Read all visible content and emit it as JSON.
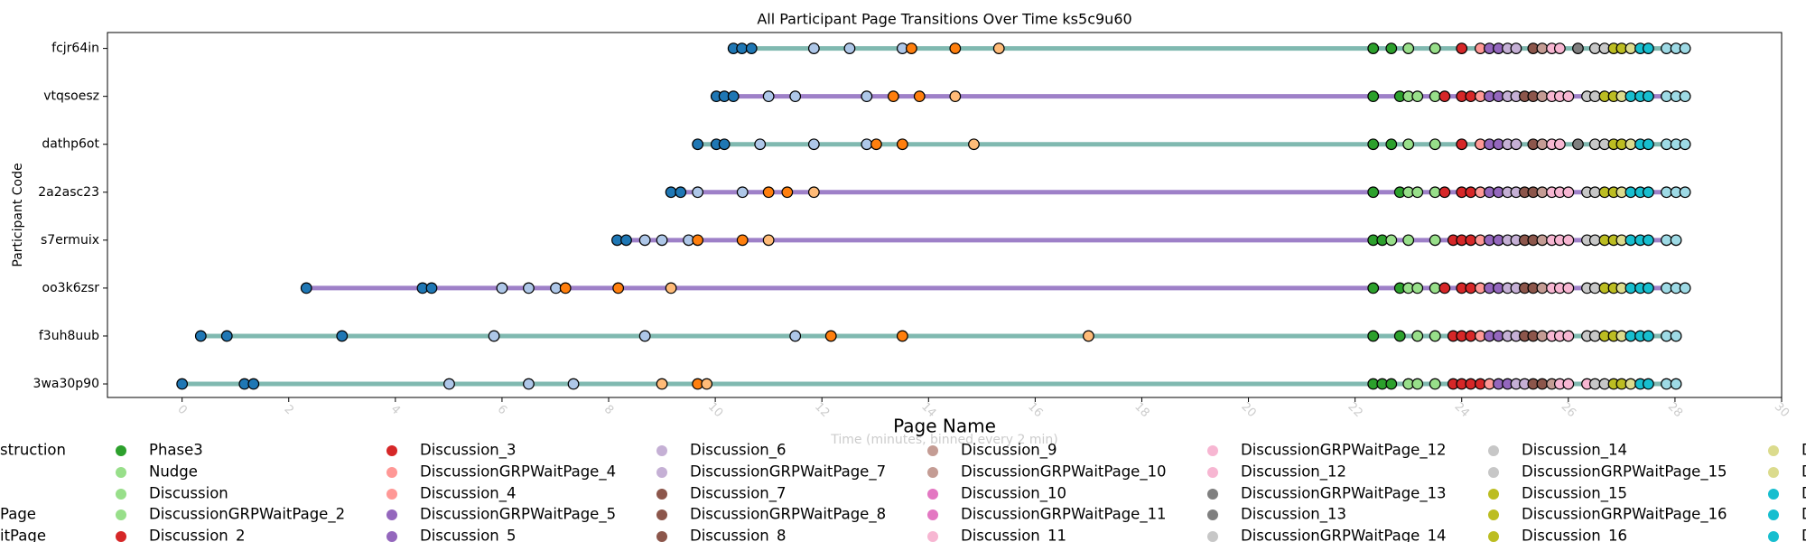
{
  "chart_data": {
    "type": "timeline",
    "title": "All Participant Page Transitions Over Time ks5c9u60",
    "x_label": "Time (minutes, binned every 2 min)",
    "y_label": "Participant Code",
    "xlim": [
      -1.4,
      30
    ],
    "xticks": [
      0,
      2,
      4,
      6,
      8,
      10,
      12,
      14,
      16,
      18,
      20,
      22,
      24,
      26,
      28,
      30
    ],
    "series": [
      {
        "name": "fcjr64in",
        "color": "#80b9b0",
        "x": [
          10.34,
          10.5,
          10.68,
          11.85,
          12.52,
          13.51,
          13.68,
          14.5,
          15.32,
          22.34,
          22.68,
          23.0,
          23.5,
          24.0,
          24.35,
          24.52,
          24.69,
          24.86,
          25.02,
          25.34,
          25.51,
          25.69,
          25.84,
          26.18,
          26.5,
          26.68,
          26.85,
          27.0,
          27.17,
          27.35,
          27.5,
          27.84,
          28.02,
          28.19
        ],
        "point_colors": [
          "#1f77b4",
          "#1f77b4",
          "#1f77b4",
          "#aec7e8",
          "#aec7e8",
          "#aec7e8",
          "#ff7f0e",
          "#ff7f0e",
          "#ffbb78",
          "#2ca02c",
          "#2ca02c",
          "#98df8a",
          "#98df8a",
          "#d62728",
          "#ff9896",
          "#9467bd",
          "#9467bd",
          "#c5b0d5",
          "#c5b0d5",
          "#8c564b",
          "#c49c94",
          "#f7b6d2",
          "#f7b6d2",
          "#7f7f7f",
          "#c7c7c7",
          "#c7c7c7",
          "#bcbd22",
          "#bcbd22",
          "#dbdb8d",
          "#17becf",
          "#17becf",
          "#9edae5",
          "#9edae5",
          "#9edae5"
        ]
      },
      {
        "name": "vtqsoesz",
        "color": "#9e80c8",
        "x": [
          10.02,
          10.17,
          10.34,
          11.0,
          11.5,
          12.84,
          13.34,
          13.83,
          14.5,
          22.34,
          22.84,
          23.0,
          23.17,
          23.5,
          23.68,
          24.0,
          24.17,
          24.35,
          24.52,
          24.69,
          24.86,
          25.02,
          25.18,
          25.34,
          25.51,
          25.69,
          25.84,
          26.0,
          26.35,
          26.5,
          26.68,
          26.85,
          27.0,
          27.17,
          27.35,
          27.5,
          27.84,
          28.02,
          28.19
        ],
        "point_colors": [
          "#1f77b4",
          "#1f77b4",
          "#1f77b4",
          "#aec7e8",
          "#aec7e8",
          "#aec7e8",
          "#ff7f0e",
          "#ff7f0e",
          "#ffbb78",
          "#2ca02c",
          "#2ca02c",
          "#98df8a",
          "#98df8a",
          "#98df8a",
          "#d62728",
          "#d62728",
          "#d62728",
          "#ff9896",
          "#9467bd",
          "#9467bd",
          "#c5b0d5",
          "#c5b0d5",
          "#8c564b",
          "#8c564b",
          "#c49c94",
          "#f7b6d2",
          "#f7b6d2",
          "#f7b6d2",
          "#c7c7c7",
          "#c7c7c7",
          "#bcbd22",
          "#bcbd22",
          "#dbdb8d",
          "#17becf",
          "#17becf",
          "#17becf",
          "#9edae5",
          "#9edae5",
          "#9edae5"
        ]
      },
      {
        "name": "dathp6ot",
        "color": "#80b9b0",
        "x": [
          9.67,
          10.02,
          10.17,
          10.84,
          11.85,
          12.84,
          13.02,
          13.51,
          14.85,
          22.34,
          22.68,
          23.0,
          23.5,
          24.0,
          24.35,
          24.52,
          24.69,
          24.86,
          25.02,
          25.34,
          25.51,
          25.69,
          25.84,
          26.18,
          26.5,
          26.68,
          26.85,
          27.0,
          27.17,
          27.35,
          27.5,
          27.84,
          28.02,
          28.19
        ],
        "point_colors": [
          "#1f77b4",
          "#1f77b4",
          "#1f77b4",
          "#aec7e8",
          "#aec7e8",
          "#aec7e8",
          "#ff7f0e",
          "#ff7f0e",
          "#ffbb78",
          "#2ca02c",
          "#2ca02c",
          "#98df8a",
          "#98df8a",
          "#d62728",
          "#ff9896",
          "#9467bd",
          "#9467bd",
          "#c5b0d5",
          "#c5b0d5",
          "#8c564b",
          "#c49c94",
          "#f7b6d2",
          "#f7b6d2",
          "#7f7f7f",
          "#c7c7c7",
          "#c7c7c7",
          "#bcbd22",
          "#bcbd22",
          "#dbdb8d",
          "#17becf",
          "#17becf",
          "#9edae5",
          "#9edae5",
          "#9edae5"
        ]
      },
      {
        "name": "2a2asc23",
        "color": "#9e80c8",
        "x": [
          9.17,
          9.35,
          9.67,
          10.51,
          11.0,
          11.35,
          11.85,
          22.34,
          22.84,
          23.0,
          23.17,
          23.5,
          23.68,
          24.0,
          24.17,
          24.35,
          24.52,
          24.69,
          24.86,
          25.02,
          25.18,
          25.34,
          25.51,
          25.69,
          25.84,
          26.0,
          26.35,
          26.5,
          26.68,
          26.85,
          27.0,
          27.17,
          27.35,
          27.5,
          27.84,
          28.02,
          28.19
        ],
        "point_colors": [
          "#1f77b4",
          "#1f77b4",
          "#aec7e8",
          "#aec7e8",
          "#ff7f0e",
          "#ff7f0e",
          "#ffbb78",
          "#2ca02c",
          "#2ca02c",
          "#98df8a",
          "#98df8a",
          "#98df8a",
          "#d62728",
          "#d62728",
          "#d62728",
          "#ff9896",
          "#9467bd",
          "#9467bd",
          "#c5b0d5",
          "#c5b0d5",
          "#8c564b",
          "#8c564b",
          "#c49c94",
          "#f7b6d2",
          "#f7b6d2",
          "#f7b6d2",
          "#c7c7c7",
          "#c7c7c7",
          "#bcbd22",
          "#bcbd22",
          "#dbdb8d",
          "#17becf",
          "#17becf",
          "#17becf",
          "#9edae5",
          "#9edae5",
          "#9edae5"
        ]
      },
      {
        "name": "s7ermuix",
        "color": "#9e80c8",
        "x": [
          8.16,
          8.33,
          8.68,
          9.0,
          9.5,
          9.67,
          10.51,
          11.0,
          22.34,
          22.51,
          22.68,
          23.0,
          23.5,
          23.84,
          24.0,
          24.17,
          24.35,
          24.52,
          24.69,
          24.86,
          25.02,
          25.18,
          25.34,
          25.51,
          25.69,
          25.84,
          26.0,
          26.35,
          26.5,
          26.68,
          26.85,
          27.0,
          27.17,
          27.35,
          27.5,
          27.84,
          28.02
        ],
        "point_colors": [
          "#1f77b4",
          "#1f77b4",
          "#aec7e8",
          "#aec7e8",
          "#aec7e8",
          "#ff7f0e",
          "#ff7f0e",
          "#ffbb78",
          "#2ca02c",
          "#2ca02c",
          "#98df8a",
          "#98df8a",
          "#98df8a",
          "#d62728",
          "#d62728",
          "#d62728",
          "#ff9896",
          "#9467bd",
          "#9467bd",
          "#c5b0d5",
          "#c5b0d5",
          "#8c564b",
          "#8c564b",
          "#c49c94",
          "#f7b6d2",
          "#f7b6d2",
          "#f7b6d2",
          "#c7c7c7",
          "#c7c7c7",
          "#bcbd22",
          "#bcbd22",
          "#dbdb8d",
          "#17becf",
          "#17becf",
          "#17becf",
          "#9edae5",
          "#9edae5"
        ]
      },
      {
        "name": "oo3k6zsr",
        "color": "#9e80c8",
        "x": [
          2.33,
          4.51,
          4.68,
          6.0,
          6.5,
          7.01,
          7.19,
          8.18,
          9.17,
          22.34,
          22.84,
          23.0,
          23.17,
          23.5,
          23.68,
          24.0,
          24.17,
          24.35,
          24.52,
          24.69,
          24.86,
          25.02,
          25.18,
          25.34,
          25.51,
          25.69,
          25.84,
          26.0,
          26.35,
          26.5,
          26.68,
          26.85,
          27.0,
          27.17,
          27.35,
          27.5,
          27.84,
          28.02,
          28.19
        ],
        "point_colors": [
          "#1f77b4",
          "#1f77b4",
          "#1f77b4",
          "#aec7e8",
          "#aec7e8",
          "#aec7e8",
          "#ff7f0e",
          "#ff7f0e",
          "#ffbb78",
          "#2ca02c",
          "#2ca02c",
          "#98df8a",
          "#98df8a",
          "#98df8a",
          "#d62728",
          "#d62728",
          "#d62728",
          "#ff9896",
          "#9467bd",
          "#9467bd",
          "#c5b0d5",
          "#c5b0d5",
          "#8c564b",
          "#8c564b",
          "#c49c94",
          "#f7b6d2",
          "#f7b6d2",
          "#f7b6d2",
          "#c7c7c7",
          "#c7c7c7",
          "#bcbd22",
          "#bcbd22",
          "#dbdb8d",
          "#17becf",
          "#17becf",
          "#17becf",
          "#9edae5",
          "#9edae5",
          "#9edae5"
        ]
      },
      {
        "name": "f3uh8uub",
        "color": "#80b9b0",
        "x": [
          0.35,
          0.84,
          3.0,
          5.85,
          8.68,
          11.5,
          12.17,
          13.51,
          17.0,
          22.34,
          22.84,
          23.17,
          23.5,
          23.84,
          24.0,
          24.17,
          24.35,
          24.52,
          24.69,
          24.86,
          25.02,
          25.18,
          25.34,
          25.51,
          25.69,
          25.84,
          26.0,
          26.35,
          26.5,
          26.68,
          26.85,
          27.0,
          27.17,
          27.35,
          27.5,
          27.84,
          28.02
        ],
        "point_colors": [
          "#1f77b4",
          "#1f77b4",
          "#1f77b4",
          "#aec7e8",
          "#aec7e8",
          "#aec7e8",
          "#ff7f0e",
          "#ff7f0e",
          "#ffbb78",
          "#2ca02c",
          "#2ca02c",
          "#98df8a",
          "#98df8a",
          "#d62728",
          "#d62728",
          "#d62728",
          "#ff9896",
          "#9467bd",
          "#9467bd",
          "#c5b0d5",
          "#c5b0d5",
          "#8c564b",
          "#8c564b",
          "#c49c94",
          "#f7b6d2",
          "#f7b6d2",
          "#f7b6d2",
          "#c7c7c7",
          "#c7c7c7",
          "#bcbd22",
          "#bcbd22",
          "#dbdb8d",
          "#17becf",
          "#17becf",
          "#17becf",
          "#9edae5",
          "#9edae5"
        ]
      },
      {
        "name": "3wa30p90",
        "color": "#80b9b0",
        "x": [
          0,
          1.17,
          1.34,
          5.01,
          6.5,
          7.34,
          9.0,
          9.67,
          9.84,
          22.34,
          22.51,
          22.68,
          23.0,
          23.17,
          23.5,
          23.84,
          24.0,
          24.17,
          24.35,
          24.52,
          24.69,
          24.86,
          25.02,
          25.18,
          25.34,
          25.51,
          25.69,
          25.84,
          26.0,
          26.35,
          26.5,
          26.68,
          26.85,
          27.0,
          27.17,
          27.35,
          27.5,
          27.84,
          28.02
        ],
        "point_colors": [
          "#1f77b4",
          "#1f77b4",
          "#1f77b4",
          "#aec7e8",
          "#aec7e8",
          "#aec7e8",
          "#ffbb78",
          "#ff7f0e",
          "#ffbb78",
          "#2ca02c",
          "#2ca02c",
          "#2ca02c",
          "#98df8a",
          "#98df8a",
          "#98df8a",
          "#d62728",
          "#d62728",
          "#d62728",
          "#d62728",
          "#ff9896",
          "#9467bd",
          "#9467bd",
          "#c5b0d5",
          "#c5b0d5",
          "#8c564b",
          "#8c564b",
          "#c49c94",
          "#f7b6d2",
          "#f7b6d2",
          "#f7b6d2",
          "#c7c7c7",
          "#c7c7c7",
          "#bcbd22",
          "#bcbd22",
          "#dbdb8d",
          "#17becf",
          "#17becf",
          "#9edae5",
          "#9edae5"
        ]
      }
    ],
    "legend": {
      "title": "Page Name",
      "clipped_labels": [
        "struction",
        "Page",
        "itPage"
      ],
      "entries": [
        {
          "name": "Phase3",
          "color": "#2ca02c"
        },
        {
          "name": "Nudge",
          "color": "#98df8a"
        },
        {
          "name": "Discussion",
          "color": "#98df8a"
        },
        {
          "name": "DiscussionGRPWaitPage_2",
          "color": "#98df8a"
        },
        {
          "name": "Discussion_2",
          "color": "#d62728"
        },
        {
          "name": "Discussion_3",
          "color": "#d62728"
        },
        {
          "name": "DiscussionGRPWaitPage_4",
          "color": "#ff9896"
        },
        {
          "name": "Discussion_4",
          "color": "#ff9896"
        },
        {
          "name": "DiscussionGRPWaitPage_5",
          "color": "#9467bd"
        },
        {
          "name": "Discussion_5",
          "color": "#9467bd"
        },
        {
          "name": "Discussion_6",
          "color": "#c5b0d5"
        },
        {
          "name": "DiscussionGRPWaitPage_7",
          "color": "#c5b0d5"
        },
        {
          "name": "Discussion_7",
          "color": "#8c564b"
        },
        {
          "name": "DiscussionGRPWaitPage_8",
          "color": "#8c564b"
        },
        {
          "name": "Discussion_8",
          "color": "#8c564b"
        },
        {
          "name": "Discussion_9",
          "color": "#c49c94"
        },
        {
          "name": "DiscussionGRPWaitPage_10",
          "color": "#c49c94"
        },
        {
          "name": "Discussion_10",
          "color": "#e377c2"
        },
        {
          "name": "DiscussionGRPWaitPage_11",
          "color": "#e377c2"
        },
        {
          "name": "Discussion_11",
          "color": "#f7b6d2"
        },
        {
          "name": "DiscussionGRPWaitPage_12",
          "color": "#f7b6d2"
        },
        {
          "name": "Discussion_12",
          "color": "#f7b6d2"
        },
        {
          "name": "DiscussionGRPWaitPage_13",
          "color": "#7f7f7f"
        },
        {
          "name": "Discussion_13",
          "color": "#7f7f7f"
        },
        {
          "name": "DiscussionGRPWaitPage_14",
          "color": "#c7c7c7"
        },
        {
          "name": "Discussion_14",
          "color": "#c7c7c7"
        },
        {
          "name": "DiscussionGRPWaitPage_15",
          "color": "#c7c7c7"
        },
        {
          "name": "Discussion_15",
          "color": "#bcbd22"
        },
        {
          "name": "DiscussionGRPWaitPage_16",
          "color": "#bcbd22"
        },
        {
          "name": "Discussion_16",
          "color": "#bcbd22"
        },
        {
          "name": "D",
          "color": "#dbdb8d"
        },
        {
          "name": "D",
          "color": "#dbdb8d"
        },
        {
          "name": "D",
          "color": "#17becf"
        },
        {
          "name": "D",
          "color": "#17becf"
        },
        {
          "name": "D",
          "color": "#17becf"
        }
      ]
    }
  }
}
